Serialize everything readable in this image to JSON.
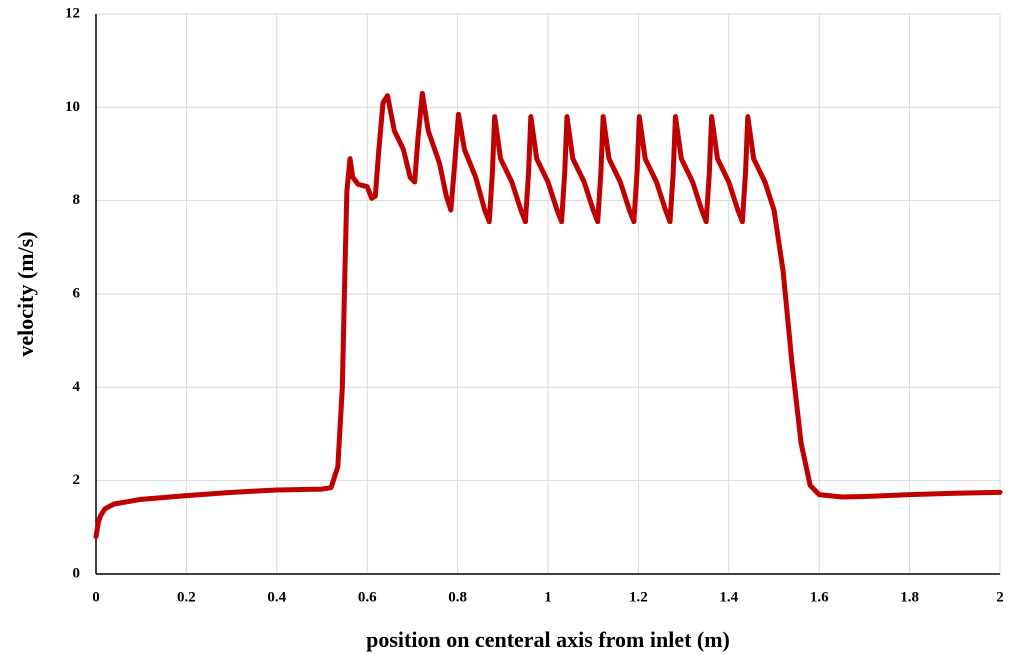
{
  "chart_data": {
    "type": "line",
    "xlabel": "position on centeral axis from inlet (m)",
    "ylabel": "velocity (m/s)",
    "color": "#c00000",
    "grid": true,
    "xlim": [
      0,
      2
    ],
    "xticks": [
      0,
      0.2,
      0.4,
      0.6,
      0.8,
      1,
      1.2,
      1.4,
      1.6,
      1.8,
      2
    ],
    "ylim": [
      0,
      12
    ],
    "yticks": [
      0,
      2,
      4,
      6,
      8,
      10,
      12
    ],
    "x": [
      0,
      0.005,
      0.01,
      0.02,
      0.04,
      0.1,
      0.2,
      0.3,
      0.4,
      0.5,
      0.52,
      0.535,
      0.545,
      0.55,
      0.555,
      0.562,
      0.568,
      0.58,
      0.6,
      0.61,
      0.618,
      0.625,
      0.635,
      0.645,
      0.66,
      0.68,
      0.695,
      0.705,
      0.712,
      0.722,
      0.735,
      0.76,
      0.775,
      0.785,
      0.792,
      0.802,
      0.815,
      0.84,
      0.86,
      0.87,
      0.877,
      0.882,
      0.895,
      0.92,
      0.94,
      0.95,
      0.957,
      0.962,
      0.975,
      1,
      1.02,
      1.03,
      1.037,
      1.042,
      1.055,
      1.08,
      1.1,
      1.11,
      1.117,
      1.122,
      1.135,
      1.16,
      1.18,
      1.19,
      1.197,
      1.202,
      1.215,
      1.24,
      1.26,
      1.27,
      1.277,
      1.282,
      1.295,
      1.32,
      1.34,
      1.35,
      1.357,
      1.362,
      1.375,
      1.4,
      1.42,
      1.43,
      1.437,
      1.442,
      1.455,
      1.48,
      1.5,
      1.52,
      1.54,
      1.56,
      1.58,
      1.6,
      1.65,
      1.7,
      1.8,
      1.9,
      2
    ],
    "values": [
      0.8,
      1.1,
      1.25,
      1.4,
      1.5,
      1.6,
      1.68,
      1.75,
      1.8,
      1.82,
      1.85,
      2.3,
      4,
      6.2,
      8.2,
      8.9,
      8.5,
      8.35,
      8.3,
      8.05,
      8.1,
      9,
      10.1,
      10.25,
      9.5,
      9.1,
      8.5,
      8.4,
      9.3,
      10.3,
      9.5,
      8.8,
      8.1,
      7.8,
      8.6,
      9.85,
      9.1,
      8.5,
      7.8,
      7.55,
      8.6,
      9.8,
      8.9,
      8.4,
      7.8,
      7.55,
      8.6,
      9.8,
      8.9,
      8.4,
      7.8,
      7.55,
      8.6,
      9.8,
      8.9,
      8.4,
      7.8,
      7.55,
      8.6,
      9.8,
      8.9,
      8.4,
      7.8,
      7.55,
      8.6,
      9.8,
      8.9,
      8.4,
      7.8,
      7.55,
      8.6,
      9.8,
      8.9,
      8.4,
      7.8,
      7.55,
      8.6,
      9.8,
      8.9,
      8.4,
      7.8,
      7.55,
      8.6,
      9.8,
      8.9,
      8.4,
      7.8,
      6.5,
      4.5,
      2.8,
      1.9,
      1.7,
      1.65,
      1.66,
      1.7,
      1.73,
      1.75
    ]
  }
}
